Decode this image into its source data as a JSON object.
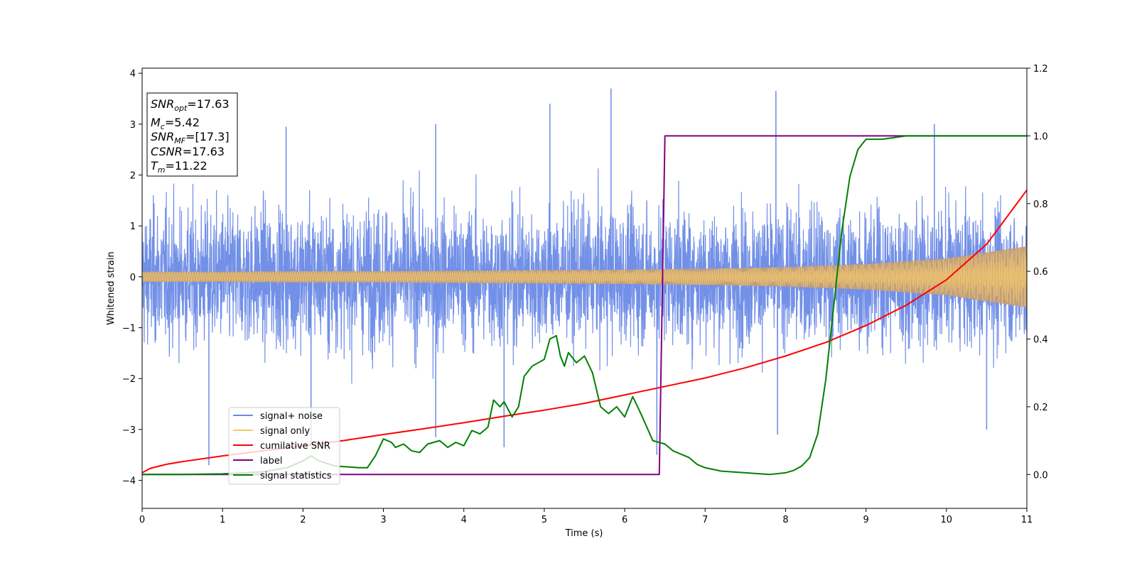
{
  "chart_data": {
    "type": "line",
    "title": "",
    "xlabel": "Time (s)",
    "ylabel": "Whitened strain",
    "xlim": [
      0,
      11
    ],
    "ylim_left": [
      -4.55,
      4.1
    ],
    "ylim_right": [
      -0.1,
      1.2
    ],
    "x_ticks": [
      0,
      1,
      2,
      3,
      4,
      5,
      6,
      7,
      8,
      9,
      10,
      11
    ],
    "y_ticks_left": [
      4,
      3,
      2,
      1,
      0,
      -1,
      -2,
      -3,
      -4
    ],
    "y_tick_labels_left": [
      "4",
      "3",
      "2",
      "1",
      "0",
      "−1",
      "−2",
      "−3",
      "−4"
    ],
    "y_ticks_right": [
      1.2,
      1.0,
      0.8,
      0.6,
      0.4,
      0.2,
      0.0
    ],
    "y_tick_labels_right": [
      "1.2",
      "1.0",
      "0.8",
      "0.6",
      "0.4",
      "0.2",
      "0.0"
    ],
    "grid": false,
    "legend_position": "lower-left",
    "series": [
      {
        "name": "signal+ noise",
        "axis": "left",
        "style": "noise",
        "color": "#6a8ae6",
        "noise_amplitude": 1.25,
        "spike_peaks": [
          {
            "x": 0.83,
            "y": -3.7
          },
          {
            "x": 1.79,
            "y": 2.95
          },
          {
            "x": 2.1,
            "y": -3.3
          },
          {
            "x": 3.65,
            "y": 3.0
          },
          {
            "x": 3.65,
            "y": -3.15
          },
          {
            "x": 4.5,
            "y": -3.35
          },
          {
            "x": 5.07,
            "y": 3.4
          },
          {
            "x": 5.83,
            "y": 3.7
          },
          {
            "x": 6.4,
            "y": -3.5
          },
          {
            "x": 7.88,
            "y": 3.65
          },
          {
            "x": 7.9,
            "y": -3.1
          },
          {
            "x": 9.85,
            "y": 3.0
          },
          {
            "x": 10.5,
            "y": -3.0
          }
        ]
      },
      {
        "name": "signal only",
        "axis": "left",
        "style": "chirp",
        "color": "#f6c96b",
        "envelope": {
          "x": [
            0,
            1,
            2,
            3,
            4,
            5,
            6,
            7,
            8,
            9,
            10,
            11
          ],
          "y": [
            0.1,
            0.1,
            0.11,
            0.11,
            0.12,
            0.13,
            0.14,
            0.16,
            0.19,
            0.25,
            0.36,
            0.6
          ]
        }
      },
      {
        "name": "cumilative SNR",
        "axis": "right",
        "color": "#ff0000",
        "x": [
          0,
          0.1,
          0.3,
          0.5,
          1,
          1.5,
          2,
          2.5,
          3,
          3.5,
          4,
          4.5,
          5,
          5.5,
          6,
          6.5,
          7,
          7.5,
          8,
          8.5,
          9,
          9.5,
          10,
          10.5,
          11
        ],
        "y": [
          0.005,
          0.018,
          0.03,
          0.038,
          0.055,
          0.07,
          0.085,
          0.1,
          0.118,
          0.135,
          0.153,
          0.172,
          0.19,
          0.21,
          0.235,
          0.26,
          0.285,
          0.315,
          0.35,
          0.39,
          0.44,
          0.5,
          0.575,
          0.68,
          0.84
        ]
      },
      {
        "name": "label",
        "axis": "right",
        "color": "#800080",
        "x": [
          0,
          6.43,
          6.5,
          11
        ],
        "y": [
          0,
          0,
          1,
          1
        ]
      },
      {
        "name": "signal statistics",
        "axis": "right",
        "color": "#008000",
        "x": [
          0,
          0.5,
          1,
          1.5,
          1.8,
          2,
          2.1,
          2.2,
          2.4,
          2.7,
          2.8,
          2.9,
          3.0,
          3.1,
          3.15,
          3.25,
          3.35,
          3.45,
          3.55,
          3.7,
          3.8,
          3.9,
          4.0,
          4.1,
          4.2,
          4.3,
          4.37,
          4.45,
          4.5,
          4.6,
          4.68,
          4.75,
          4.85,
          5.0,
          5.07,
          5.15,
          5.2,
          5.25,
          5.3,
          5.4,
          5.5,
          5.6,
          5.7,
          5.8,
          5.9,
          6.0,
          6.1,
          6.2,
          6.35,
          6.5,
          6.6,
          6.7,
          6.8,
          6.9,
          7.0,
          7.2,
          7.5,
          7.8,
          8.0,
          8.1,
          8.2,
          8.3,
          8.4,
          8.5,
          8.6,
          8.7,
          8.8,
          8.9,
          9.0,
          9.2,
          9.5,
          10,
          10.5,
          11
        ],
        "y": [
          0.0,
          0.0,
          0.002,
          0.008,
          0.02,
          0.04,
          0.055,
          0.04,
          0.025,
          0.02,
          0.02,
          0.055,
          0.105,
          0.095,
          0.08,
          0.09,
          0.07,
          0.065,
          0.09,
          0.1,
          0.08,
          0.095,
          0.085,
          0.13,
          0.12,
          0.14,
          0.22,
          0.2,
          0.215,
          0.17,
          0.2,
          0.29,
          0.32,
          0.34,
          0.4,
          0.41,
          0.35,
          0.32,
          0.36,
          0.33,
          0.35,
          0.3,
          0.2,
          0.18,
          0.2,
          0.17,
          0.23,
          0.18,
          0.1,
          0.09,
          0.07,
          0.06,
          0.05,
          0.03,
          0.02,
          0.01,
          0.005,
          0.0,
          0.005,
          0.012,
          0.025,
          0.05,
          0.12,
          0.28,
          0.5,
          0.72,
          0.88,
          0.96,
          0.99,
          0.99,
          1.0,
          1.0,
          1.0,
          1.0
        ]
      }
    ],
    "annotations": {
      "snr_opt": "=17.63",
      "mc": "=5.42",
      "snr_mf": "=[17.3]",
      "csnr": "=17.63",
      "tm": "=11.22"
    }
  }
}
